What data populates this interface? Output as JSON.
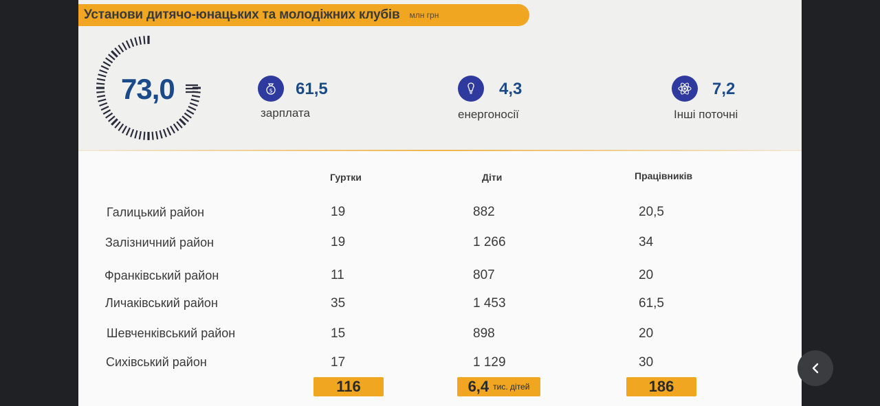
{
  "header": {
    "title": "Установи дитячо-юнацьких та молодіжних клубів",
    "unit": "млн грн"
  },
  "gauge": {
    "value": "73,0"
  },
  "stats": [
    {
      "value": "61,5",
      "label": "зарплата",
      "icon": "money-bag-icon"
    },
    {
      "value": "4,3",
      "label": "енергоносії",
      "icon": "lightbulb-icon"
    },
    {
      "value": "7,2",
      "label": "Інші поточні",
      "icon": "atom-icon"
    }
  ],
  "table": {
    "headers": [
      "Гуртки",
      "Діти",
      "Працівників"
    ],
    "rows": [
      {
        "name": "Галицький район",
        "groups": "19",
        "children": "882",
        "staff": "20,5"
      },
      {
        "name": "Залізничний район",
        "groups": "19",
        "children": "1 266",
        "staff": "34"
      },
      {
        "name": "Франківський район",
        "groups": "11",
        "children": "807",
        "staff": "20"
      },
      {
        "name": "Личаківський район",
        "groups": "35",
        "children": "1 453",
        "staff": "61,5"
      },
      {
        "name": "Шевченківський район",
        "groups": "15",
        "children": "898",
        "staff": "20"
      },
      {
        "name": "Сихівський район",
        "groups": "17",
        "children": "1 129",
        "staff": "30"
      }
    ],
    "totals": {
      "groups": "116",
      "children": "6,4",
      "children_unit": "тис. дітей",
      "staff": "186"
    }
  },
  "colors": {
    "accent": "#f0a620",
    "value_blue": "#1a4a8a",
    "icon_bg": "#2f3a9e"
  }
}
